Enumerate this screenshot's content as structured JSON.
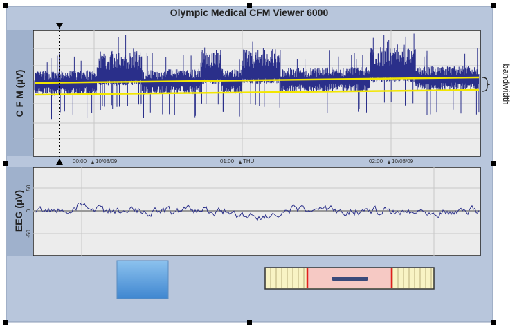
{
  "title": "Olympic Medical CFM Viewer 6000",
  "cfm_panel": {
    "axis_label": "C F M (µV)",
    "time_labels": [
      {
        "time": "00:00",
        "date": "10/08/09"
      },
      {
        "time": "01:00",
        "date": "THU"
      },
      {
        "time": "02:00",
        "date": "10/08/09"
      }
    ]
  },
  "eeg_panel": {
    "axis_label": "EEG (µV)",
    "ticks": [
      "50",
      "0",
      "-50"
    ]
  },
  "bandwidth_label": "bandwidth"
}
